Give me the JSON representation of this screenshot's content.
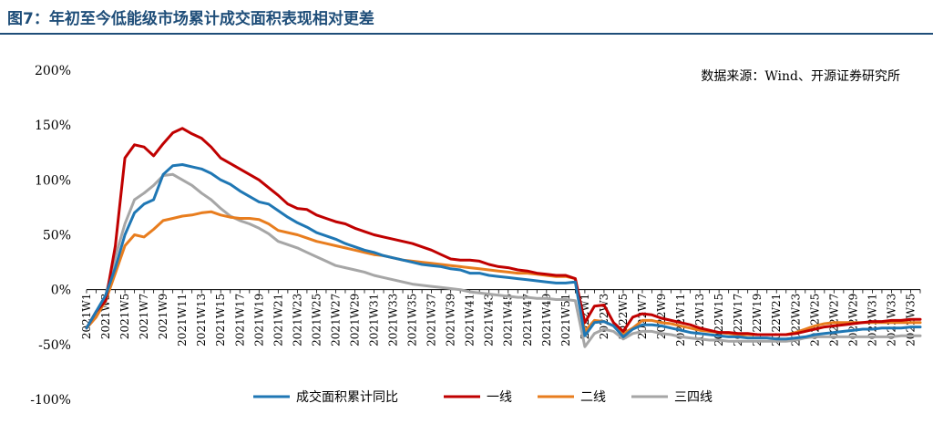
{
  "title": "图7：年初至今低能级市场累计成交面积表现相对更差",
  "source": "数据来源：Wind、开源证券研究所",
  "chart_data": {
    "type": "line",
    "title": "图7：年初至今低能级市场累计成交面积表现相对更差",
    "xlabel": "",
    "ylabel": "",
    "ylim": [
      -1.0,
      2.0
    ],
    "yticks": [
      {
        "value": 2.0,
        "label": "200%"
      },
      {
        "value": 1.5,
        "label": "150%"
      },
      {
        "value": 1.0,
        "label": "100%"
      },
      {
        "value": 0.5,
        "label": "50%"
      },
      {
        "value": 0.0,
        "label": "0%"
      },
      {
        "value": -0.5,
        "label": "-50%"
      },
      {
        "value": -1.0,
        "label": "-100%"
      }
    ],
    "categories": [
      "2021W1",
      "2021W2",
      "2021W3",
      "2021W4",
      "2021W5",
      "2021W6",
      "2021W7",
      "2021W8",
      "2021W9",
      "2021W10",
      "2021W11",
      "2021W12",
      "2021W13",
      "2021W14",
      "2021W15",
      "2021W16",
      "2021W17",
      "2021W18",
      "2021W19",
      "2021W20",
      "2021W21",
      "2021W22",
      "2021W23",
      "2021W24",
      "2021W25",
      "2021W26",
      "2021W27",
      "2021W28",
      "2021W29",
      "2021W30",
      "2021W31",
      "2021W32",
      "2021W33",
      "2021W34",
      "2021W35",
      "2021W36",
      "2021W37",
      "2021W38",
      "2021W39",
      "2021W40",
      "2021W41",
      "2021W42",
      "2021W43",
      "2021W44",
      "2021W45",
      "2021W46",
      "2021W47",
      "2021W48",
      "2021W49",
      "2021W50",
      "2021W51",
      "2021W52",
      "2022W1",
      "2022W2",
      "2022W3",
      "2022W4",
      "2022W5",
      "2022W6",
      "2022W7",
      "2022W8",
      "2022W9",
      "2022W10",
      "2022W11",
      "2022W12",
      "2022W13",
      "2022W14",
      "2022W15",
      "2022W16",
      "2022W17",
      "2022W18",
      "2022W19",
      "2022W20",
      "2022W21",
      "2022W22",
      "2022W23",
      "2022W24",
      "2022W25",
      "2022W26",
      "2022W27",
      "2022W28",
      "2022W29",
      "2022W30",
      "2022W31",
      "2022W32",
      "2022W33",
      "2022W34",
      "2022W35",
      "2022W36"
    ],
    "tick_labels": [
      "2021W1",
      "2021W3",
      "2021W5",
      "2021W7",
      "2021W9",
      "2021W11",
      "2021W13",
      "2021W15",
      "2021W17",
      "2021W19",
      "2021W21",
      "2021W23",
      "2021W25",
      "2021W27",
      "2021W29",
      "2021W31",
      "2021W33",
      "2021W35",
      "2021W37",
      "2021W39",
      "2021W41",
      "2021W43",
      "2021W45",
      "2021W47",
      "2021W49",
      "2021W51",
      "2022W1",
      "2022W3",
      "2022W5",
      "2022W7",
      "2022W9",
      "2022W11",
      "2022W13",
      "2022W15",
      "2022W17",
      "2022W19",
      "2022W21",
      "2022W23",
      "2022W25",
      "2022W27",
      "2022W29",
      "2022W31",
      "2022W33",
      "2022W35"
    ],
    "series": [
      {
        "name": "成交面积累计同比",
        "color": "#1f77b4",
        "values": [
          -0.35,
          -0.2,
          -0.05,
          0.2,
          0.5,
          0.7,
          0.78,
          0.82,
          1.05,
          1.13,
          1.14,
          1.12,
          1.1,
          1.06,
          1.0,
          0.96,
          0.9,
          0.85,
          0.8,
          0.78,
          0.72,
          0.66,
          0.61,
          0.57,
          0.52,
          0.49,
          0.46,
          0.42,
          0.39,
          0.36,
          0.34,
          0.31,
          0.29,
          0.27,
          0.25,
          0.23,
          0.22,
          0.21,
          0.19,
          0.18,
          0.15,
          0.15,
          0.13,
          0.12,
          0.11,
          0.1,
          0.09,
          0.08,
          0.07,
          0.06,
          0.06,
          0.07,
          -0.42,
          -0.3,
          -0.29,
          -0.33,
          -0.43,
          -0.36,
          -0.32,
          -0.32,
          -0.33,
          -0.35,
          -0.37,
          -0.39,
          -0.4,
          -0.41,
          -0.42,
          -0.43,
          -0.43,
          -0.44,
          -0.44,
          -0.44,
          -0.45,
          -0.45,
          -0.44,
          -0.43,
          -0.41,
          -0.4,
          -0.39,
          -0.38,
          -0.37,
          -0.36,
          -0.36,
          -0.35,
          -0.35,
          -0.35,
          -0.34,
          -0.34
        ]
      },
      {
        "name": "一线",
        "color": "#c00000",
        "values": [
          -0.35,
          -0.2,
          -0.1,
          0.4,
          1.2,
          1.32,
          1.3,
          1.22,
          1.33,
          1.43,
          1.47,
          1.42,
          1.38,
          1.3,
          1.2,
          1.15,
          1.1,
          1.05,
          1.0,
          0.93,
          0.86,
          0.78,
          0.74,
          0.73,
          0.68,
          0.65,
          0.62,
          0.6,
          0.56,
          0.53,
          0.5,
          0.48,
          0.46,
          0.44,
          0.42,
          0.39,
          0.36,
          0.32,
          0.28,
          0.27,
          0.27,
          0.26,
          0.23,
          0.21,
          0.2,
          0.18,
          0.17,
          0.15,
          0.14,
          0.13,
          0.13,
          0.1,
          -0.3,
          -0.15,
          -0.14,
          -0.3,
          -0.38,
          -0.25,
          -0.22,
          -0.23,
          -0.26,
          -0.28,
          -0.3,
          -0.32,
          -0.35,
          -0.37,
          -0.39,
          -0.39,
          -0.4,
          -0.4,
          -0.41,
          -0.41,
          -0.41,
          -0.41,
          -0.4,
          -0.38,
          -0.36,
          -0.34,
          -0.33,
          -0.32,
          -0.31,
          -0.3,
          -0.29,
          -0.29,
          -0.28,
          -0.28,
          -0.27,
          -0.27
        ]
      },
      {
        "name": "二线",
        "color": "#e87d1e",
        "values": [
          -0.35,
          -0.25,
          -0.1,
          0.15,
          0.4,
          0.5,
          0.48,
          0.55,
          0.63,
          0.65,
          0.67,
          0.68,
          0.7,
          0.71,
          0.68,
          0.66,
          0.65,
          0.65,
          0.64,
          0.6,
          0.54,
          0.52,
          0.5,
          0.47,
          0.44,
          0.42,
          0.4,
          0.38,
          0.36,
          0.34,
          0.32,
          0.31,
          0.29,
          0.27,
          0.26,
          0.25,
          0.24,
          0.23,
          0.22,
          0.21,
          0.2,
          0.19,
          0.18,
          0.17,
          0.16,
          0.15,
          0.15,
          0.14,
          0.13,
          0.12,
          0.12,
          0.1,
          -0.38,
          -0.28,
          -0.29,
          -0.33,
          -0.4,
          -0.35,
          -0.28,
          -0.28,
          -0.3,
          -0.31,
          -0.33,
          -0.35,
          -0.37,
          -0.38,
          -0.39,
          -0.4,
          -0.41,
          -0.41,
          -0.41,
          -0.41,
          -0.41,
          -0.41,
          -0.39,
          -0.36,
          -0.33,
          -0.31,
          -0.3,
          -0.3,
          -0.3,
          -0.3,
          -0.3,
          -0.3,
          -0.3,
          -0.3,
          -0.3,
          -0.3
        ]
      },
      {
        "name": "三四线",
        "color": "#a6a6a6",
        "values": [
          -0.35,
          -0.25,
          -0.05,
          0.3,
          0.6,
          0.82,
          0.88,
          0.95,
          1.04,
          1.05,
          1.0,
          0.95,
          0.88,
          0.82,
          0.74,
          0.67,
          0.63,
          0.6,
          0.56,
          0.51,
          0.44,
          0.41,
          0.38,
          0.34,
          0.3,
          0.26,
          0.22,
          0.2,
          0.18,
          0.16,
          0.13,
          0.11,
          0.09,
          0.07,
          0.05,
          0.04,
          0.03,
          0.02,
          0.01,
          0.0,
          -0.02,
          -0.03,
          -0.04,
          -0.05,
          -0.06,
          -0.07,
          -0.07,
          -0.08,
          -0.08,
          -0.09,
          -0.09,
          -0.1,
          -0.52,
          -0.4,
          -0.36,
          -0.38,
          -0.45,
          -0.4,
          -0.38,
          -0.38,
          -0.4,
          -0.41,
          -0.43,
          -0.44,
          -0.45,
          -0.46,
          -0.46,
          -0.47,
          -0.47,
          -0.47,
          -0.47,
          -0.47,
          -0.47,
          -0.47,
          -0.46,
          -0.44,
          -0.43,
          -0.43,
          -0.43,
          -0.43,
          -0.43,
          -0.43,
          -0.43,
          -0.43,
          -0.43,
          -0.42,
          -0.42,
          -0.42
        ]
      }
    ],
    "grid": false,
    "legend_position": "bottom"
  }
}
